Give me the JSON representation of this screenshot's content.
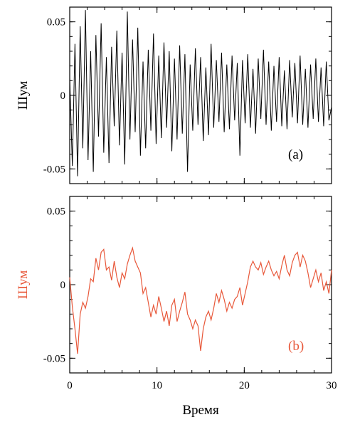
{
  "chart_data": [
    {
      "type": "line",
      "panel_label": "(a)",
      "xlabel": "",
      "ylabel": "Шум",
      "xlim": [
        0,
        30
      ],
      "ylim": [
        -0.06,
        0.06
      ],
      "y_ticks": [
        -0.05,
        0,
        0.05
      ],
      "y_tick_labels": [
        "-0.05",
        "0",
        "0.05"
      ],
      "x_ticks": [
        0,
        10,
        20,
        30
      ],
      "grid": false,
      "series": [
        {
          "color": "#000000",
          "x": [
            0,
            0.3,
            0.6,
            0.9,
            1.2,
            1.5,
            1.8,
            2.1,
            2.4,
            2.7,
            3.0,
            3.3,
            3.6,
            3.9,
            4.2,
            4.5,
            4.8,
            5.1,
            5.4,
            5.7,
            6.0,
            6.3,
            6.6,
            6.9,
            7.2,
            7.5,
            7.8,
            8.1,
            8.4,
            8.7,
            9.0,
            9.3,
            9.6,
            9.9,
            10.2,
            10.5,
            10.8,
            11.1,
            11.4,
            11.7,
            12.0,
            12.3,
            12.6,
            12.9,
            13.2,
            13.5,
            13.8,
            14.1,
            14.4,
            14.7,
            15.0,
            15.3,
            15.6,
            15.9,
            16.2,
            16.5,
            16.8,
            17.1,
            17.4,
            17.7,
            18.0,
            18.3,
            18.6,
            18.9,
            19.2,
            19.5,
            19.8,
            20.1,
            20.4,
            20.7,
            21.0,
            21.3,
            21.6,
            21.9,
            22.2,
            22.5,
            22.8,
            23.1,
            23.4,
            23.7,
            24.0,
            24.3,
            24.6,
            24.9,
            25.2,
            25.5,
            25.8,
            26.1,
            26.4,
            26.7,
            27.0,
            27.3,
            27.6,
            27.9,
            28.2,
            28.5,
            28.8,
            29.1,
            29.4,
            29.7,
            30.0
          ],
          "values": [
            0.012,
            -0.048,
            0.035,
            -0.055,
            0.047,
            -0.036,
            0.058,
            -0.044,
            0.03,
            -0.052,
            0.041,
            -0.028,
            0.049,
            -0.039,
            0.026,
            -0.046,
            0.033,
            -0.021,
            0.044,
            -0.034,
            0.029,
            -0.047,
            0.057,
            -0.03,
            0.038,
            -0.025,
            0.046,
            -0.041,
            0.023,
            -0.036,
            0.031,
            -0.024,
            0.042,
            -0.033,
            0.027,
            -0.029,
            0.036,
            -0.022,
            0.03,
            -0.038,
            0.025,
            -0.03,
            0.034,
            -0.026,
            0.028,
            -0.052,
            0.021,
            -0.024,
            0.032,
            -0.02,
            0.026,
            -0.031,
            0.019,
            -0.027,
            0.035,
            -0.022,
            0.024,
            -0.018,
            0.029,
            -0.025,
            0.021,
            -0.023,
            0.027,
            -0.017,
            0.022,
            -0.041,
            0.024,
            -0.019,
            0.028,
            -0.022,
            0.018,
            -0.026,
            0.025,
            -0.016,
            0.031,
            -0.02,
            0.023,
            -0.024,
            0.02,
            -0.018,
            0.026,
            -0.021,
            0.017,
            -0.023,
            0.024,
            -0.015,
            0.022,
            -0.019,
            0.027,
            -0.02,
            0.018,
            -0.022,
            0.021,
            -0.016,
            0.025,
            -0.018,
            0.019,
            -0.021,
            0.023,
            -0.017,
            -0.008
          ]
        }
      ]
    },
    {
      "type": "line",
      "panel_label": "(b)",
      "xlabel": "Время",
      "ylabel": "Шум",
      "xlim": [
        0,
        30
      ],
      "ylim": [
        -0.06,
        0.06
      ],
      "y_ticks": [
        -0.05,
        0,
        0.05
      ],
      "y_tick_labels": [
        "-0.05",
        "0",
        "0.05"
      ],
      "x_ticks": [
        0,
        10,
        20,
        30
      ],
      "x_tick_labels": [
        "0",
        "10",
        "20",
        "30"
      ],
      "grid": false,
      "series": [
        {
          "color": "#e8583a",
          "x": [
            0,
            0.3,
            0.6,
            0.9,
            1.2,
            1.5,
            1.8,
            2.1,
            2.4,
            2.7,
            3.0,
            3.3,
            3.6,
            3.9,
            4.2,
            4.5,
            4.8,
            5.1,
            5.4,
            5.7,
            6.0,
            6.3,
            6.6,
            6.9,
            7.2,
            7.5,
            7.8,
            8.1,
            8.4,
            8.7,
            9.0,
            9.3,
            9.6,
            9.9,
            10.2,
            10.5,
            10.8,
            11.1,
            11.4,
            11.7,
            12.0,
            12.3,
            12.6,
            12.9,
            13.2,
            13.5,
            13.8,
            14.1,
            14.4,
            14.7,
            15.0,
            15.3,
            15.6,
            15.9,
            16.2,
            16.5,
            16.8,
            17.1,
            17.4,
            17.7,
            18.0,
            18.3,
            18.6,
            18.9,
            19.2,
            19.5,
            19.8,
            20.1,
            20.4,
            20.7,
            21.0,
            21.3,
            21.6,
            21.9,
            22.2,
            22.5,
            22.8,
            23.1,
            23.4,
            23.7,
            24.0,
            24.3,
            24.6,
            24.9,
            25.2,
            25.5,
            25.8,
            26.1,
            26.4,
            26.7,
            27.0,
            27.3,
            27.6,
            27.9,
            28.2,
            28.5,
            28.8,
            29.1,
            29.4,
            29.7,
            30.0
          ],
          "values": [
            0.005,
            -0.015,
            -0.03,
            -0.047,
            -0.02,
            -0.012,
            -0.016,
            -0.008,
            0.004,
            0.002,
            0.018,
            0.01,
            0.022,
            0.024,
            0.01,
            0.012,
            0.003,
            0.016,
            0.005,
            -0.002,
            0.008,
            0.004,
            0.014,
            0.02,
            0.025,
            0.016,
            0.012,
            0.008,
            -0.006,
            -0.002,
            -0.012,
            -0.022,
            -0.014,
            -0.02,
            -0.008,
            -0.016,
            -0.025,
            -0.018,
            -0.028,
            -0.014,
            -0.01,
            -0.025,
            -0.018,
            -0.012,
            -0.005,
            -0.02,
            -0.024,
            -0.03,
            -0.024,
            -0.028,
            -0.045,
            -0.03,
            -0.022,
            -0.018,
            -0.024,
            -0.016,
            -0.006,
            -0.012,
            -0.004,
            -0.01,
            -0.018,
            -0.012,
            -0.016,
            -0.01,
            -0.008,
            -0.002,
            -0.014,
            -0.006,
            0.002,
            0.012,
            0.016,
            0.012,
            0.01,
            0.015,
            0.007,
            0.012,
            0.016,
            0.01,
            0.006,
            0.009,
            0.004,
            0.013,
            0.02,
            0.01,
            0.006,
            0.015,
            0.02,
            0.022,
            0.012,
            0.02,
            0.016,
            0.008,
            -0.002,
            0.004,
            0.01,
            0.002,
            0.008,
            -0.004,
            0.002,
            -0.006,
            0.01
          ]
        }
      ]
    }
  ]
}
